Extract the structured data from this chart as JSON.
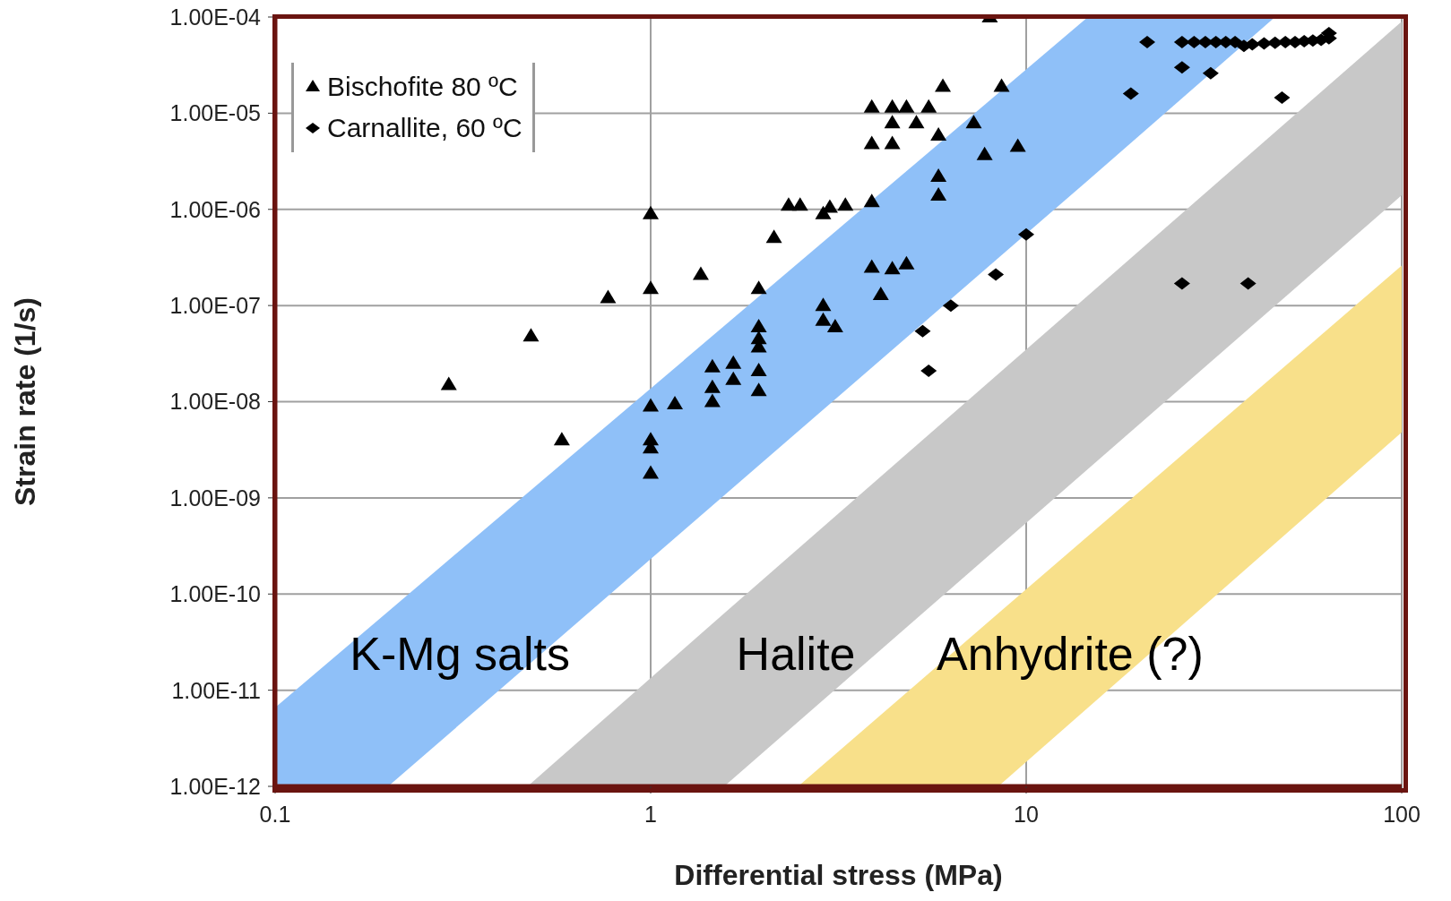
{
  "chart_data": {
    "type": "scatter",
    "xlabel": "Differential stress (MPa)",
    "ylabel": "Strain rate  (1/s)",
    "log": "xy",
    "grid": true,
    "legend": "top left",
    "xlim": [
      0.1,
      100
    ],
    "xticks": [
      0.1,
      1,
      10,
      100
    ],
    "ylim": [
      1e-12,
      0.0001
    ],
    "yticks": [
      {
        "value": 1e-12,
        "label": "1.00E-12"
      },
      {
        "value": 1e-11,
        "label": "1.00E-11"
      },
      {
        "value": 1e-10,
        "label": "1.00E-10"
      },
      {
        "value": 1e-09,
        "label": "1.00E-09"
      },
      {
        "value": 1e-08,
        "label": "1.00E-08"
      },
      {
        "value": 1e-07,
        "label": "1.00E-07"
      },
      {
        "value": 1e-06,
        "label": "1.00E-06"
      },
      {
        "value": 1e-05,
        "label": "1.00E-05"
      },
      {
        "value": 0.0001,
        "label": "1.00E-04"
      }
    ],
    "annotations": [
      "K-Mg salts",
      "Halite",
      "Anhydrite (?)"
    ],
    "series": [
      {
        "name": "Bischofite 80 ºC",
        "marker": "triangle",
        "color": "#000000",
        "x": [
          0.29,
          0.48,
          0.58,
          0.77,
          1,
          1,
          1,
          1,
          1,
          1,
          1.16,
          1.36,
          1.46,
          1.46,
          1.46,
          1.66,
          1.66,
          1.94,
          1.94,
          1.94,
          1.94,
          1.94,
          1.94,
          2.13,
          2.33,
          2.5,
          2.88,
          3,
          3.3,
          2.88,
          2.88,
          3.1,
          3.88,
          3.88,
          3.88,
          3.88,
          4.1,
          4.4,
          4.4,
          4.4,
          4.4,
          4.8,
          5.5,
          5.1,
          4.8,
          5.84,
          5.84,
          5.84,
          6,
          7.25,
          7.75,
          8,
          8.6,
          9.5
        ],
        "values": [
          1.5e-08,
          4.8e-08,
          4e-09,
          1.2e-07,
          9e-07,
          1.5e-07,
          9e-09,
          4e-09,
          3.3e-09,
          1.8e-09,
          9.5e-09,
          2.1e-07,
          2.3e-08,
          1.4e-08,
          1e-08,
          2.5e-08,
          1.7e-08,
          1.5e-07,
          6e-08,
          4.5e-08,
          3.7e-08,
          2.1e-08,
          1.3e-08,
          5.1e-07,
          1.1e-06,
          1.1e-06,
          9e-07,
          1.05e-06,
          1.1e-06,
          1e-07,
          7e-08,
          6e-08,
          1.2e-06,
          4.8e-06,
          1.15e-05,
          2.5e-07,
          1.3e-07,
          4.8e-06,
          1.15e-05,
          7.9e-06,
          2.4e-07,
          1.15e-05,
          1.15e-05,
          7.9e-06,
          2.7e-07,
          5.9e-06,
          2.2e-06,
          1.4e-06,
          1.9e-05,
          7.9e-06,
          3.7e-06,
          0.0001,
          1.9e-05,
          4.5e-06
        ]
      },
      {
        "name": "Carnallite, 60 ºC",
        "marker": "diamond",
        "color": "#000000",
        "x": [
          10,
          8.3,
          6.3,
          5.3,
          5.5,
          19,
          21,
          26,
          31,
          48,
          26,
          39,
          26,
          28,
          30,
          32,
          34,
          36,
          38,
          40,
          43,
          46,
          49,
          52,
          55,
          58,
          61,
          64,
          64
        ],
        "values": [
          5.5e-07,
          2.1e-07,
          1e-07,
          5.4e-08,
          2.1e-08,
          1.6e-05,
          5.5e-05,
          3e-05,
          2.6e-05,
          1.45e-05,
          1.7e-07,
          1.7e-07,
          5.5e-05,
          5.5e-05,
          5.5e-05,
          5.5e-05,
          5.5e-05,
          5.5e-05,
          5e-05,
          5.2e-05,
          5.3e-05,
          5.4e-05,
          5.5e-05,
          5.5e-05,
          5.6e-05,
          5.7e-05,
          5.8e-05,
          6e-05,
          6.8e-05
        ]
      },
      {
        "type": "area",
        "color": "#8fc0f8",
        "x": [
          0.1,
          0.2,
          14.6,
          46
        ],
        "values": [
          null,
          null,
          null,
          null
        ],
        "upper": [
          6.6e-12,
          6.6e-11,
          0.0001,
          0.0001
        ],
        "lower": [
          1e-12,
          1e-12,
          2e-06,
          0.0001
        ]
      },
      {
        "type": "area",
        "color": "#c8c8c8",
        "x": [
          0.47,
          1.57,
          100
        ],
        "values": [
          null,
          null,
          null
        ],
        "upper": [
          1e-12,
          6.3e-11,
          9e-05
        ],
        "lower": [
          1e-12,
          1e-12,
          1.4e-06
        ]
      },
      {
        "type": "area",
        "color": "#f8e08a",
        "x": [
          2.47,
          8.43,
          100
        ],
        "values": [
          null,
          null,
          null
        ],
        "upper": [
          1e-12,
          6.3e-11,
          2.6e-07
        ],
        "lower": [
          1e-12,
          1e-12,
          4.8e-09
        ]
      }
    ]
  }
}
